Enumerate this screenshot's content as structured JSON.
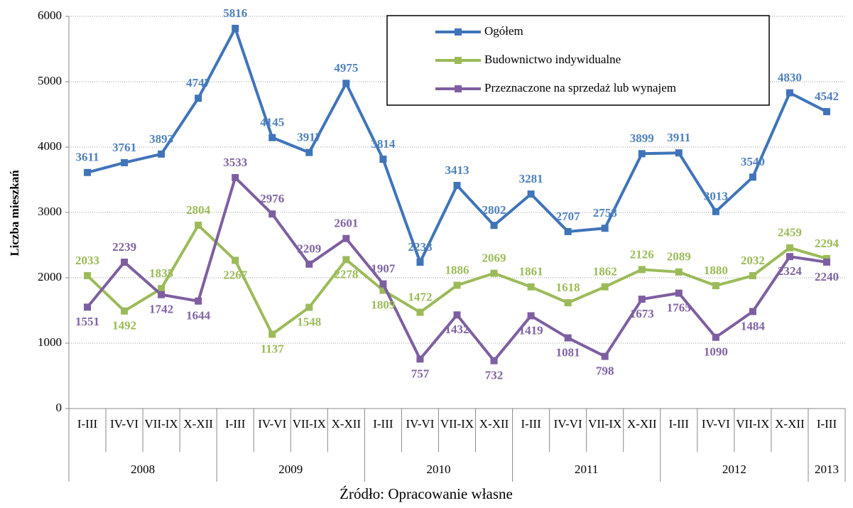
{
  "chart_data": {
    "type": "line",
    "y_label": "Liczba mieszkań",
    "source": "Źródło: Opracowanie własne",
    "groups": [
      {
        "name": "2008",
        "categories": [
          "I-III",
          "IV-VI",
          "VII-IX",
          "X-XII"
        ]
      },
      {
        "name": "2009",
        "categories": [
          "I-III",
          "IV-VI",
          "VII-IX",
          "X-XII"
        ]
      },
      {
        "name": "2010",
        "categories": [
          "I-III",
          "IV-VI",
          "VII-IX",
          "X-XII"
        ]
      },
      {
        "name": "2011",
        "categories": [
          "I-III",
          "IV-VI",
          "VII-IX",
          "X-XII"
        ]
      },
      {
        "name": "2012",
        "categories": [
          "I-III",
          "IV-VI",
          "VII-IX",
          "X-XII"
        ]
      },
      {
        "name": "2013",
        "categories": [
          "I-III"
        ]
      }
    ],
    "series": [
      {
        "name": "Ogółem",
        "color": "#3f74b9",
        "label_color": "#4f81bd",
        "values": [
          3611,
          3761,
          3893,
          4747,
          5816,
          4145,
          3917,
          4975,
          3814,
          2238,
          3413,
          2802,
          3281,
          2707,
          2758,
          3899,
          3911,
          3013,
          3540,
          4830,
          4542
        ]
      },
      {
        "name": "Budownictwo indywidualne",
        "color": "#9bbb59",
        "label_color": "#9bbb59",
        "values": [
          2033,
          1492,
          1835,
          2804,
          2267,
          1137,
          1548,
          2278,
          1809,
          1472,
          1886,
          2069,
          1861,
          1618,
          1862,
          2126,
          2089,
          1880,
          2032,
          2459,
          2294
        ]
      },
      {
        "name": "Przeznaczone na sprzedaż lub wynajem",
        "color": "#7e5ea1",
        "label_color": "#8064a2",
        "values": [
          1551,
          2239,
          1742,
          1644,
          3533,
          2976,
          2209,
          2601,
          1907,
          757,
          1432,
          732,
          1419,
          1081,
          798,
          1673,
          1765,
          1090,
          1484,
          2324,
          2240
        ]
      }
    ],
    "ylim": [
      0,
      6000
    ],
    "yticks": [
      0,
      1000,
      2000,
      3000,
      4000,
      5000,
      6000
    ],
    "grid": true,
    "legend": "top-right"
  }
}
